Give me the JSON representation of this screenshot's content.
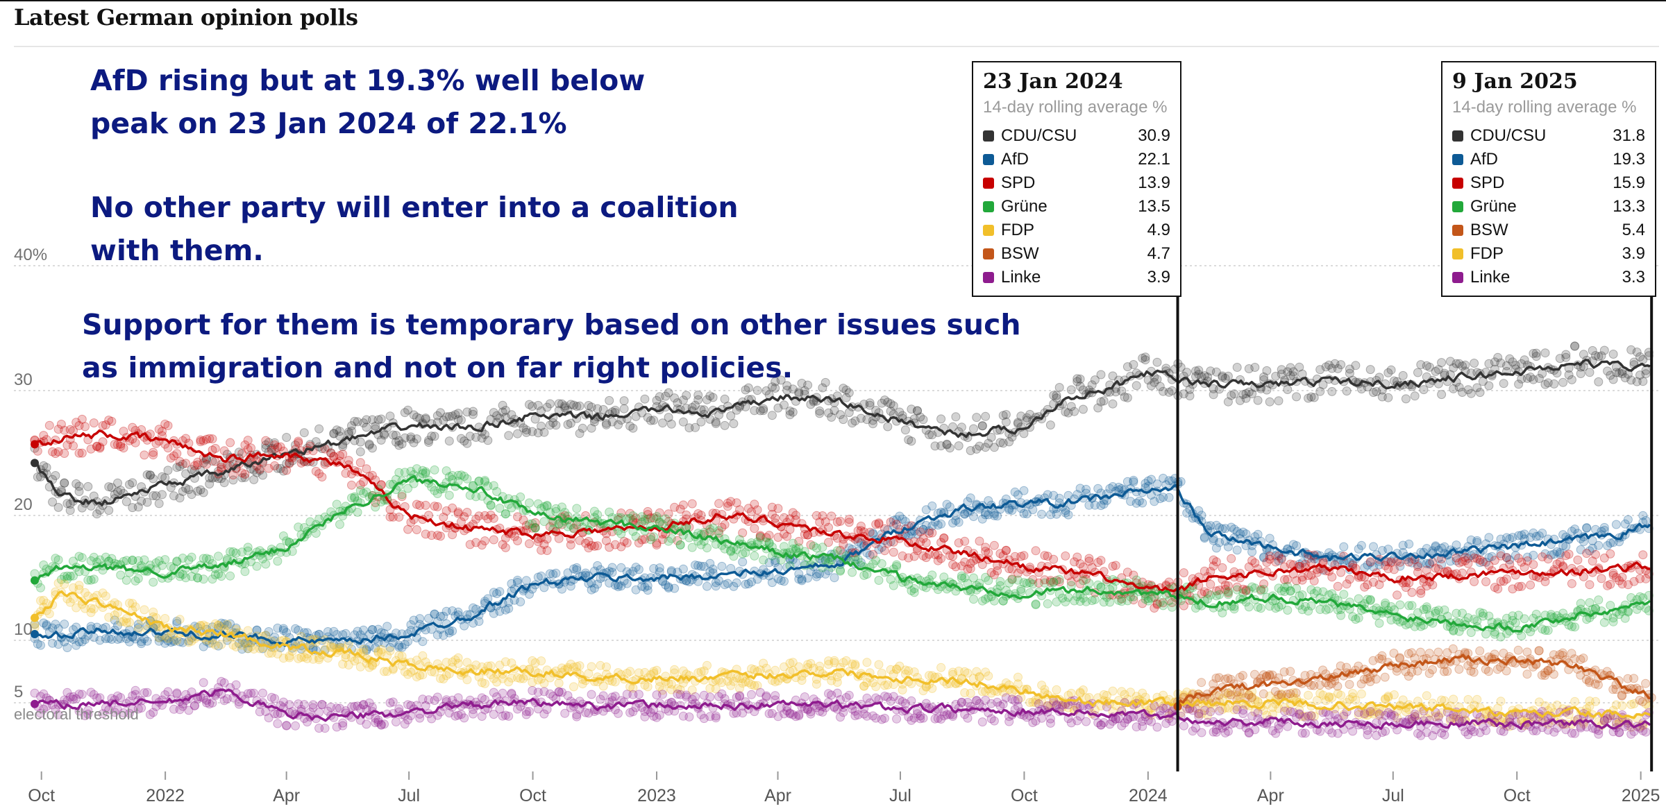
{
  "title": "Latest German opinion polls",
  "annotations": {
    "note_1": "AfD rising but at 19.3% well below\npeak on 23 Jan 2024 of 22.1%",
    "note_2": "No other party will enter into a coalition\nwith them.",
    "note_3": "Support for them is temporary based on other issues such\nas immigration and not on far right policies."
  },
  "threshold_label": "electoral threshold",
  "colors": {
    "CDU/CSU": "#333333",
    "AfD": "#0d5a95",
    "SPD": "#c70000",
    "Grüne": "#22a83a",
    "FDP": "#f1bf2a",
    "BSW": "#c35619",
    "Linke": "#8e1c8e"
  },
  "tooltips": [
    {
      "date": "23 Jan 2024",
      "subtitle": "14-day rolling average %",
      "rows": [
        {
          "party": "CDU/CSU",
          "value": "30.9",
          "color": "#333333"
        },
        {
          "party": "AfD",
          "value": "22.1",
          "color": "#0d5a95"
        },
        {
          "party": "SPD",
          "value": "13.9",
          "color": "#c70000"
        },
        {
          "party": "Grüne",
          "value": "13.5",
          "color": "#22a83a"
        },
        {
          "party": "FDP",
          "value": "4.9",
          "color": "#f1bf2a"
        },
        {
          "party": "BSW",
          "value": "4.7",
          "color": "#c35619"
        },
        {
          "party": "Linke",
          "value": "3.9",
          "color": "#8e1c8e"
        }
      ]
    },
    {
      "date": "9 Jan 2025",
      "subtitle": "14-day rolling average %",
      "rows": [
        {
          "party": "CDU/CSU",
          "value": "31.8",
          "color": "#333333"
        },
        {
          "party": "AfD",
          "value": "19.3",
          "color": "#0d5a95"
        },
        {
          "party": "SPD",
          "value": "15.9",
          "color": "#c70000"
        },
        {
          "party": "Grüne",
          "value": "13.3",
          "color": "#22a83a"
        },
        {
          "party": "BSW",
          "value": "5.4",
          "color": "#c35619"
        },
        {
          "party": "FDP",
          "value": "3.9",
          "color": "#f1bf2a"
        },
        {
          "party": "Linke",
          "value": "3.3",
          "color": "#8e1c8e"
        }
      ]
    }
  ],
  "chart_data": {
    "type": "line",
    "title": "Latest German opinion polls",
    "xlabel": "",
    "ylabel": "",
    "y_ticks": [
      {
        "value": 40,
        "label": "40%"
      },
      {
        "value": 30,
        "label": "30"
      },
      {
        "value": 20,
        "label": "20"
      },
      {
        "value": 10,
        "label": "10"
      },
      {
        "value": 5,
        "label": "5"
      }
    ],
    "x_ticks": [
      {
        "value": "2021-10-01",
        "label": "Oct"
      },
      {
        "value": "2022-01-01",
        "label": "2022"
      },
      {
        "value": "2022-04-01",
        "label": "Apr"
      },
      {
        "value": "2022-07-01",
        "label": "Jul"
      },
      {
        "value": "2022-10-01",
        "label": "Oct"
      },
      {
        "value": "2023-01-01",
        "label": "2023"
      },
      {
        "value": "2023-04-01",
        "label": "Apr"
      },
      {
        "value": "2023-07-01",
        "label": "Jul"
      },
      {
        "value": "2023-10-01",
        "label": "Oct"
      },
      {
        "value": "2024-01-01",
        "label": "2024"
      },
      {
        "value": "2024-04-01",
        "label": "Apr"
      },
      {
        "value": "2024-07-01",
        "label": "Jul"
      },
      {
        "value": "2024-10-01",
        "label": "Oct"
      },
      {
        "value": "2025-01-01",
        "label": "2025"
      }
    ],
    "xlim": [
      "2021-09-26",
      "2025-01-12"
    ],
    "ylim": [
      2,
      43
    ],
    "threshold": 5,
    "highlight_dates": [
      "2024-01-23",
      "2025-01-09"
    ],
    "grid": true,
    "series": [
      {
        "name": "CDU/CSU",
        "x": [
          "2021-09-26",
          "2021-10-15",
          "2021-11-15",
          "2022-01-01",
          "2022-02-15",
          "2022-04-01",
          "2022-05-15",
          "2022-07-01",
          "2022-08-15",
          "2022-10-01",
          "2022-11-15",
          "2023-01-01",
          "2023-02-15",
          "2023-04-01",
          "2023-05-15",
          "2023-07-01",
          "2023-08-15",
          "2023-10-01",
          "2023-11-01",
          "2023-12-01",
          "2024-01-01",
          "2024-01-23",
          "2024-02-15",
          "2024-04-01",
          "2024-05-15",
          "2024-07-01",
          "2024-08-15",
          "2024-10-01",
          "2024-11-15",
          "2024-12-15",
          "2025-01-09"
        ],
        "values": [
          24.2,
          21.5,
          21.0,
          22.5,
          23.5,
          25.0,
          26.0,
          27.2,
          27.0,
          28.0,
          27.8,
          28.5,
          28.2,
          29.5,
          29.2,
          27.5,
          26.5,
          27.0,
          29.5,
          30.0,
          31.5,
          30.9,
          30.5,
          30.5,
          30.8,
          30.5,
          31.0,
          31.5,
          32.2,
          32.0,
          31.8
        ]
      },
      {
        "name": "AfD",
        "x": [
          "2021-09-26",
          "2021-10-15",
          "2021-11-15",
          "2022-01-01",
          "2022-02-15",
          "2022-04-01",
          "2022-05-15",
          "2022-07-01",
          "2022-08-15",
          "2022-10-01",
          "2022-11-15",
          "2023-01-01",
          "2023-02-15",
          "2023-04-01",
          "2023-05-15",
          "2023-07-01",
          "2023-08-15",
          "2023-10-01",
          "2023-11-01",
          "2023-12-01",
          "2024-01-01",
          "2024-01-23",
          "2024-02-15",
          "2024-04-01",
          "2024-05-15",
          "2024-07-01",
          "2024-08-15",
          "2024-10-01",
          "2024-11-15",
          "2024-12-15",
          "2025-01-09"
        ],
        "values": [
          10.5,
          10.3,
          10.8,
          10.6,
          10.4,
          10.0,
          9.8,
          10.5,
          12.0,
          14.5,
          15.0,
          15.0,
          15.2,
          15.5,
          16.0,
          19.0,
          20.5,
          21.0,
          21.0,
          21.5,
          22.0,
          22.1,
          18.5,
          17.5,
          16.5,
          16.8,
          17.0,
          17.5,
          18.0,
          18.5,
          19.3
        ]
      },
      {
        "name": "SPD",
        "x": [
          "2021-09-26",
          "2021-10-15",
          "2021-11-15",
          "2022-01-01",
          "2022-02-15",
          "2022-04-01",
          "2022-05-15",
          "2022-07-01",
          "2022-08-15",
          "2022-10-01",
          "2022-11-15",
          "2023-01-01",
          "2023-02-15",
          "2023-04-01",
          "2023-05-15",
          "2023-07-01",
          "2023-08-15",
          "2023-10-01",
          "2023-11-01",
          "2023-12-01",
          "2024-01-01",
          "2024-01-23",
          "2024-02-15",
          "2024-04-01",
          "2024-05-15",
          "2024-07-01",
          "2024-08-15",
          "2024-10-01",
          "2024-11-15",
          "2024-12-15",
          "2025-01-09"
        ],
        "values": [
          25.7,
          26.2,
          26.5,
          26.0,
          24.5,
          25.0,
          24.0,
          20.0,
          19.0,
          18.5,
          18.8,
          19.0,
          20.0,
          19.5,
          18.5,
          18.0,
          17.0,
          16.0,
          15.5,
          15.0,
          14.0,
          13.9,
          15.0,
          15.5,
          15.8,
          15.0,
          15.2,
          15.5,
          15.5,
          15.8,
          15.9
        ]
      },
      {
        "name": "Grüne",
        "x": [
          "2021-09-26",
          "2021-10-15",
          "2021-11-15",
          "2022-01-01",
          "2022-02-15",
          "2022-04-01",
          "2022-05-15",
          "2022-07-01",
          "2022-08-15",
          "2022-10-01",
          "2022-11-15",
          "2023-01-01",
          "2023-02-15",
          "2023-04-01",
          "2023-05-15",
          "2023-07-01",
          "2023-08-15",
          "2023-10-01",
          "2023-11-01",
          "2023-12-01",
          "2024-01-01",
          "2024-01-23",
          "2024-02-15",
          "2024-04-01",
          "2024-05-15",
          "2024-07-01",
          "2024-08-15",
          "2024-10-01",
          "2024-11-15",
          "2024-12-15",
          "2025-01-09"
        ],
        "values": [
          14.8,
          15.8,
          15.8,
          15.5,
          16.0,
          17.5,
          20.5,
          22.8,
          22.5,
          20.0,
          19.5,
          19.0,
          18.0,
          17.0,
          16.5,
          15.0,
          14.2,
          13.8,
          14.0,
          14.0,
          13.8,
          13.5,
          13.0,
          13.5,
          13.0,
          12.0,
          11.5,
          11.0,
          12.0,
          12.5,
          13.3
        ]
      },
      {
        "name": "FDP",
        "x": [
          "2021-09-26",
          "2021-10-15",
          "2021-11-15",
          "2022-01-01",
          "2022-02-15",
          "2022-04-01",
          "2022-05-15",
          "2022-07-01",
          "2022-08-15",
          "2022-10-01",
          "2022-11-15",
          "2023-01-01",
          "2023-02-15",
          "2023-04-01",
          "2023-05-15",
          "2023-07-01",
          "2023-08-15",
          "2023-10-01",
          "2023-11-01",
          "2023-12-01",
          "2024-01-01",
          "2024-01-23",
          "2024-02-15",
          "2024-04-01",
          "2024-05-15",
          "2024-07-01",
          "2024-08-15",
          "2024-10-01",
          "2024-11-15",
          "2024-12-15",
          "2025-01-09"
        ],
        "values": [
          11.8,
          13.8,
          13.0,
          11.0,
          10.5,
          9.5,
          9.0,
          8.0,
          7.5,
          7.5,
          7.0,
          7.0,
          7.0,
          7.3,
          7.5,
          7.0,
          6.8,
          6.0,
          5.3,
          5.0,
          5.0,
          4.9,
          5.0,
          5.0,
          4.8,
          4.7,
          4.5,
          4.0,
          4.2,
          4.0,
          3.9
        ]
      },
      {
        "name": "BSW",
        "x": [
          "2024-01-23",
          "2024-02-15",
          "2024-04-01",
          "2024-05-15",
          "2024-07-01",
          "2024-08-15",
          "2024-10-01",
          "2024-11-15",
          "2024-12-15",
          "2025-01-09"
        ],
        "values": [
          4.7,
          6.0,
          6.5,
          7.0,
          8.0,
          8.5,
          8.3,
          8.0,
          6.5,
          5.4
        ]
      },
      {
        "name": "Linke",
        "x": [
          "2021-09-26",
          "2021-10-15",
          "2021-11-15",
          "2022-01-01",
          "2022-02-15",
          "2022-04-01",
          "2022-05-15",
          "2022-07-01",
          "2022-08-15",
          "2022-10-01",
          "2022-11-15",
          "2023-01-01",
          "2023-02-15",
          "2023-04-01",
          "2023-05-15",
          "2023-07-01",
          "2023-08-15",
          "2023-10-01",
          "2023-11-01",
          "2023-12-01",
          "2024-01-01",
          "2024-01-23",
          "2024-02-15",
          "2024-04-01",
          "2024-05-15",
          "2024-07-01",
          "2024-08-15",
          "2024-10-01",
          "2024-11-15",
          "2024-12-15",
          "2025-01-09"
        ],
        "values": [
          4.9,
          4.8,
          5.0,
          5.0,
          6.0,
          4.0,
          3.9,
          4.2,
          4.8,
          5.0,
          4.8,
          4.8,
          4.7,
          4.9,
          4.8,
          4.6,
          4.5,
          4.4,
          4.3,
          4.1,
          4.0,
          3.9,
          3.5,
          3.5,
          3.4,
          3.3,
          3.4,
          3.3,
          3.4,
          3.3,
          3.3
        ]
      }
    ]
  }
}
